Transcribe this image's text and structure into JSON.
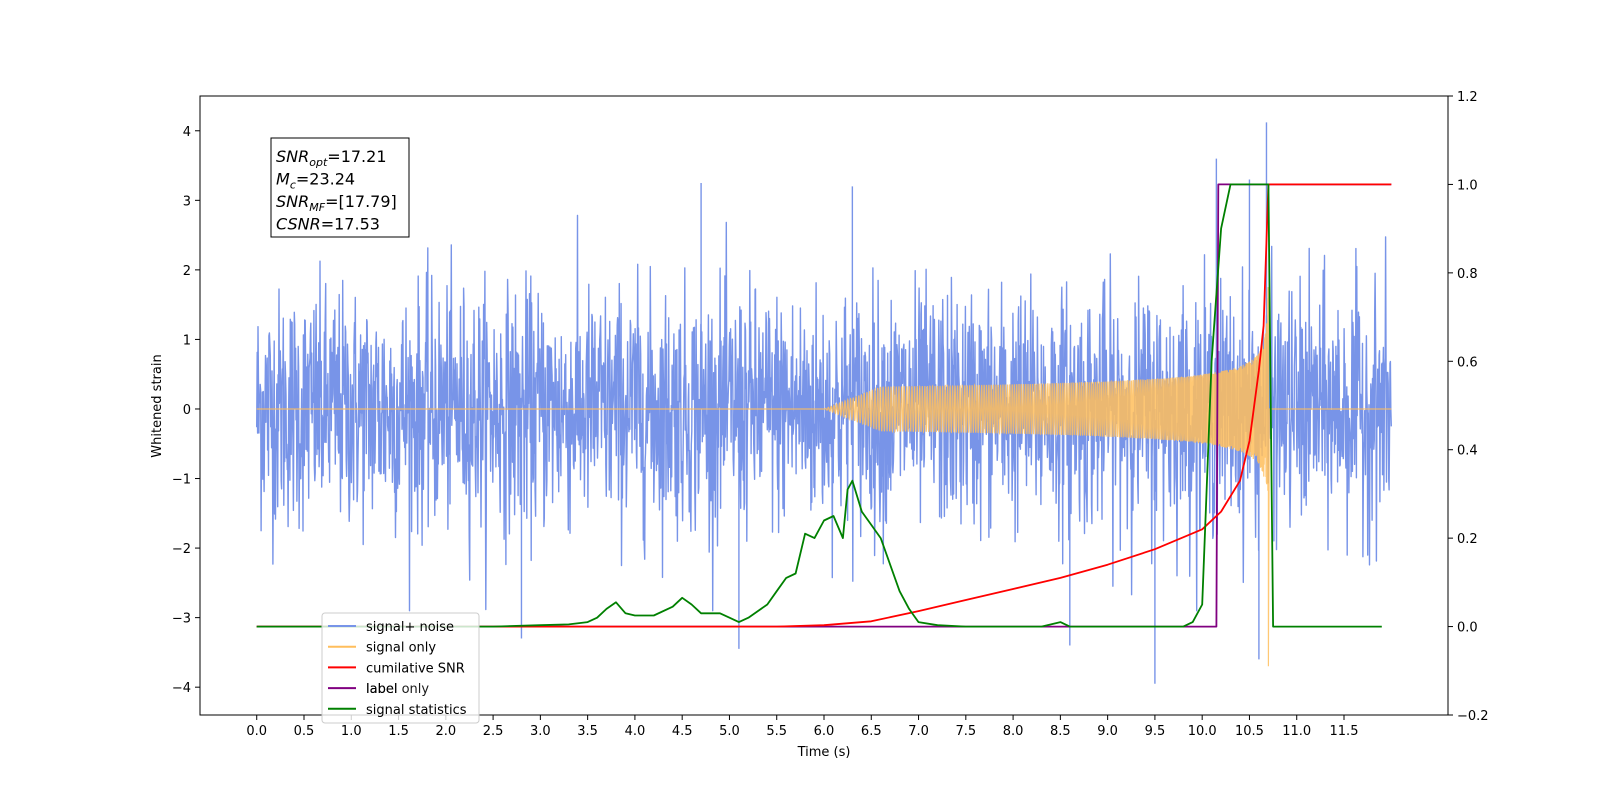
{
  "chart_data": {
    "type": "line",
    "title": "",
    "xlabel": "Time (s)",
    "ylabel": "Whitened strain",
    "y2label": "",
    "xlim": [
      -0.6,
      12.6
    ],
    "ylim": [
      -4.4,
      4.5
    ],
    "y2lim": [
      -0.2,
      1.2
    ],
    "x_ticks": [
      0.0,
      0.5,
      1.0,
      1.5,
      2.0,
      2.5,
      3.0,
      3.5,
      4.0,
      4.5,
      5.0,
      5.5,
      6.0,
      6.5,
      7.0,
      7.5,
      8.0,
      8.5,
      9.0,
      9.5,
      10.0,
      10.5,
      11.0,
      11.5
    ],
    "x_tick_labels": [
      "0.0",
      "0.5",
      "1.0",
      "1.5",
      "2.0",
      "2.5",
      "3.0",
      "3.5",
      "4.0",
      "4.5",
      "5.0",
      "5.5",
      "6.0",
      "6.5",
      "7.0",
      "7.5",
      "8.0",
      "8.5",
      "9.0",
      "9.5",
      "10.0",
      "10.5",
      "11.0",
      "11.5"
    ],
    "y_ticks": [
      -4,
      -3,
      -2,
      -1,
      0,
      1,
      2,
      3,
      4
    ],
    "y_tick_labels": [
      "−4",
      "−3",
      "−2",
      "−1",
      "0",
      "1",
      "2",
      "3",
      "4"
    ],
    "y2_ticks": [
      -0.2,
      0.0,
      0.2,
      0.4,
      0.6,
      0.8,
      1.0,
      1.2
    ],
    "y2_tick_labels": [
      "−0.2",
      "0.0",
      "0.2",
      "0.4",
      "0.6",
      "0.8",
      "1.0",
      "1.2"
    ],
    "grid": false,
    "legend_position": "bottom-left",
    "annotations": {
      "lines": [
        {
          "name": "SNR",
          "sub": "opt",
          "value": "=17.21"
        },
        {
          "name": "M",
          "sub": "c",
          "value": "=23.24"
        },
        {
          "name": "SNR",
          "sub": "MF",
          "value": "=[17.79]"
        },
        {
          "name": "CSNR",
          "sub": "",
          "value": "=17.53"
        }
      ]
    },
    "series": [
      {
        "name": "signal+ noise",
        "axis": "left",
        "color": "#7894e8",
        "description": "noisy whitened strain, x from 0.0 to 12.0 s",
        "x_range": [
          0.0,
          12.0
        ],
        "envelope_typical": [
          -1.5,
          1.5
        ],
        "peaks": [
          {
            "x": 10.68,
            "y": 4.12
          },
          {
            "x": 10.15,
            "y": 3.6
          },
          {
            "x": 10.5,
            "y": 3.3
          },
          {
            "x": 4.7,
            "y": 3.25
          },
          {
            "x": 6.3,
            "y": 3.2
          },
          {
            "x": 9.5,
            "y": -3.95
          },
          {
            "x": 5.1,
            "y": -3.45
          },
          {
            "x": 8.6,
            "y": -3.4
          },
          {
            "x": 2.8,
            "y": -3.3
          },
          {
            "x": 10.6,
            "y": -3.6
          }
        ]
      },
      {
        "name": "signal only",
        "axis": "left",
        "color": "#ffbe5c",
        "description": "chirp signal, amplitude grows from 0 near 6.0 s to peak near 10.7 s then ends",
        "x_range": [
          0.0,
          12.0
        ],
        "chirp_start": 6.0,
        "merger": 10.7,
        "peak_amplitude": 3.3,
        "min_value": -3.7
      },
      {
        "name": "cumilative SNR",
        "axis": "right",
        "color": "#ff0000",
        "x": [
          0.0,
          5.0,
          5.5,
          6.0,
          6.5,
          7.0,
          7.5,
          8.0,
          8.5,
          9.0,
          9.5,
          10.0,
          10.2,
          10.4,
          10.5,
          10.6,
          10.65,
          10.7,
          12.0
        ],
        "values": [
          0.0,
          0.0,
          0.0,
          0.003,
          0.012,
          0.035,
          0.06,
          0.085,
          0.11,
          0.14,
          0.175,
          0.22,
          0.26,
          0.33,
          0.42,
          0.58,
          0.68,
          1.0,
          1.0
        ]
      },
      {
        "name": "label",
        "axis": "right",
        "color": "#800080",
        "x": [
          0.0,
          10.15,
          10.17,
          10.7,
          10.72,
          12.0
        ],
        "values": [
          0.0,
          0.0,
          1.0,
          1.0,
          1.0,
          1.0
        ]
      },
      {
        "name": "label only",
        "axis": "right",
        "color": "#cccccc",
        "legend_only": true,
        "legend_text_faint": true
      },
      {
        "name": "signal statistics",
        "axis": "right",
        "color": "#008000",
        "x": [
          0.0,
          2.5,
          3.0,
          3.3,
          3.5,
          3.6,
          3.7,
          3.8,
          3.9,
          4.0,
          4.2,
          4.4,
          4.5,
          4.6,
          4.7,
          4.9,
          5.0,
          5.1,
          5.2,
          5.4,
          5.5,
          5.6,
          5.7,
          5.8,
          5.9,
          6.0,
          6.1,
          6.2,
          6.25,
          6.3,
          6.4,
          6.5,
          6.6,
          6.8,
          6.9,
          7.0,
          7.2,
          7.5,
          8.3,
          8.5,
          8.6,
          9.8,
          9.9,
          10.0,
          10.1,
          10.2,
          10.3,
          10.4,
          10.55,
          10.7,
          10.75,
          11.9
        ],
        "values": [
          0.0,
          0.0,
          0.003,
          0.005,
          0.01,
          0.02,
          0.04,
          0.055,
          0.03,
          0.025,
          0.025,
          0.045,
          0.065,
          0.05,
          0.03,
          0.03,
          0.02,
          0.01,
          0.02,
          0.05,
          0.08,
          0.11,
          0.12,
          0.21,
          0.2,
          0.24,
          0.25,
          0.2,
          0.31,
          0.33,
          0.26,
          0.23,
          0.2,
          0.08,
          0.04,
          0.01,
          0.003,
          0.0,
          0.0,
          0.01,
          0.0,
          0.0,
          0.01,
          0.05,
          0.6,
          0.9,
          1.0,
          1.0,
          1.0,
          1.0,
          0.0,
          0.0
        ]
      }
    ]
  }
}
